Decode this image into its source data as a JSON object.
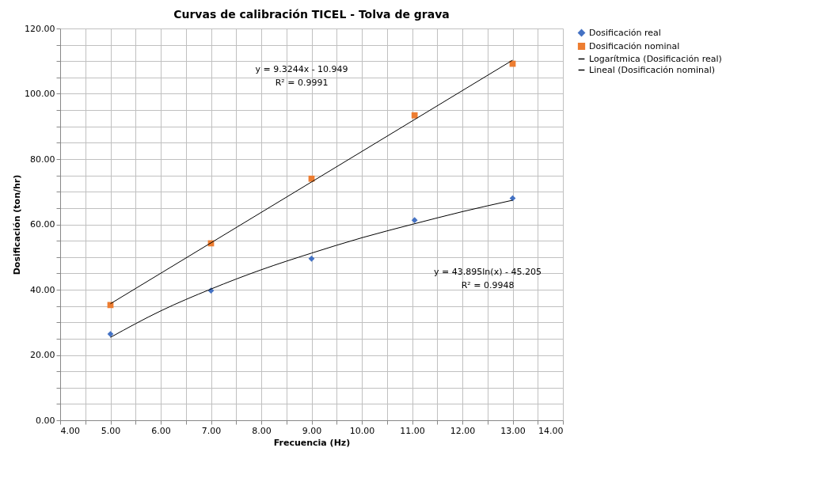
{
  "chart_data": {
    "type": "scatter",
    "title": "Curvas de calibración TICEL - Tolva de grava",
    "xlabel": "Frecuencia  (Hz)",
    "ylabel": "Dosificación  (ton/hr)",
    "x": [
      5,
      7,
      9,
      11.05,
      13
    ],
    "series": [
      {
        "name": "Dosificación real",
        "color": "#4472c4",
        "marker": "diamond",
        "values": [
          26.4,
          39.7,
          49.5,
          61.3,
          68.0
        ]
      },
      {
        "name": "Dosificación nominal",
        "color": "#ed7d31",
        "marker": "square",
        "values": [
          35.3,
          54.2,
          74.0,
          93.4,
          109.2
        ]
      },
      {
        "name": "Logarítmica (Dosificación real)",
        "type": "line",
        "color": "#000000",
        "marker": "none",
        "x": [
          5,
          6,
          7,
          8,
          9,
          10,
          11,
          12,
          13
        ],
        "values": [
          25.4,
          33.5,
          40.2,
          46.1,
          51.2,
          55.9,
          60.0,
          63.9,
          67.4
        ]
      },
      {
        "name": "Lineal (Dosificación nominal)",
        "type": "line",
        "color": "#000000",
        "marker": "none",
        "x": [
          5,
          13
        ],
        "values": [
          35.7,
          110.3
        ]
      }
    ],
    "xlim": [
      4,
      14
    ],
    "ylim": [
      0,
      120
    ],
    "xticks": [
      {
        "value": 4,
        "label": "4.00"
      },
      {
        "value": 4.5,
        "label": null
      },
      {
        "value": 5,
        "label": "5.00"
      },
      {
        "value": 5.5,
        "label": null
      },
      {
        "value": 6,
        "label": "6.00"
      },
      {
        "value": 6.5,
        "label": null
      },
      {
        "value": 7,
        "label": "7.00"
      },
      {
        "value": 7.5,
        "label": null
      },
      {
        "value": 8,
        "label": "8.00"
      },
      {
        "value": 8.5,
        "label": null
      },
      {
        "value": 9,
        "label": "9.00"
      },
      {
        "value": 9.5,
        "label": null
      },
      {
        "value": 10,
        "label": "10.00"
      },
      {
        "value": 10.5,
        "label": null
      },
      {
        "value": 11,
        "label": "11.00"
      },
      {
        "value": 11.5,
        "label": null
      },
      {
        "value": 12,
        "label": "12.00"
      },
      {
        "value": 12.5,
        "label": null
      },
      {
        "value": 13,
        "label": "13.00"
      },
      {
        "value": 13.5,
        "label": null
      },
      {
        "value": 14,
        "label": "14.00"
      }
    ],
    "yticks": [
      {
        "value": 0,
        "label": "0.00"
      },
      {
        "value": 5,
        "label": null
      },
      {
        "value": 10,
        "label": null
      },
      {
        "value": 15,
        "label": null
      },
      {
        "value": 20,
        "label": "20.00"
      },
      {
        "value": 25,
        "label": null
      },
      {
        "value": 30,
        "label": null
      },
      {
        "value": 35,
        "label": null
      },
      {
        "value": 40,
        "label": "40.00"
      },
      {
        "value": 45,
        "label": null
      },
      {
        "value": 50,
        "label": null
      },
      {
        "value": 55,
        "label": null
      },
      {
        "value": 60,
        "label": "60.00"
      },
      {
        "value": 65,
        "label": null
      },
      {
        "value": 70,
        "label": null
      },
      {
        "value": 75,
        "label": null
      },
      {
        "value": 80,
        "label": "80.00"
      },
      {
        "value": 85,
        "label": null
      },
      {
        "value": 90,
        "label": null
      },
      {
        "value": 95,
        "label": null
      },
      {
        "value": 100,
        "label": "100.00"
      },
      {
        "value": 105,
        "label": null
      },
      {
        "value": 110,
        "label": null
      },
      {
        "value": 115,
        "label": null
      },
      {
        "value": 120,
        "label": "120.00"
      }
    ],
    "grid": true,
    "legend": "right",
    "annotations": [
      "y = 9.3244x - 10.949",
      "R² = 0.9991",
      "y = 43.895ln(x) - 45.205",
      "R² = 0.9948"
    ]
  }
}
